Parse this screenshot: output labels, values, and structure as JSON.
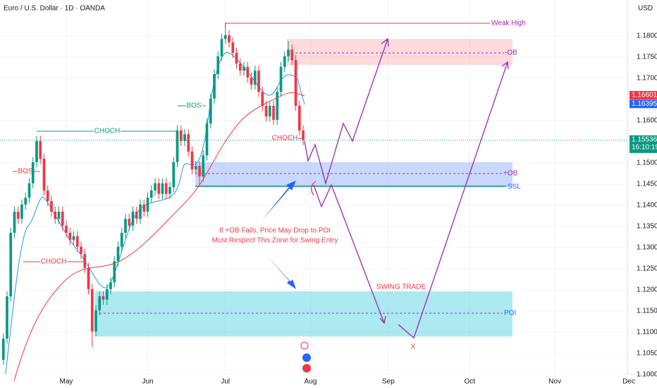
{
  "chart_data": {
    "type": "candlestick",
    "title": "Euro / U.S. Dollar · 1D · OANDA",
    "currency": "USD",
    "x": [
      -17,
      -16,
      -15,
      -14,
      -13,
      -12,
      -11,
      -10,
      -9,
      -8,
      -7,
      -6,
      -5,
      -4,
      -3,
      -2,
      -1,
      0,
      1,
      2,
      3,
      4,
      5,
      6,
      7,
      8,
      9,
      10,
      11,
      12,
      13,
      14,
      15,
      16,
      17,
      18,
      19,
      20,
      21,
      22,
      23,
      24,
      25,
      26,
      27,
      28,
      29,
      30,
      31,
      32,
      33,
      34,
      35,
      36,
      37,
      38,
      39,
      40,
      41,
      42,
      43,
      44,
      45,
      46,
      47,
      48,
      49,
      50,
      51,
      52,
      53,
      54,
      55,
      56,
      57,
      58,
      59,
      60,
      61,
      62,
      63,
      64
    ],
    "open": [
      1.1035,
      1.1085,
      1.1185,
      1.1335,
      1.1385,
      1.1368,
      1.1402,
      1.1418,
      1.1452,
      1.1502,
      1.1552,
      1.151,
      1.1435,
      1.141,
      1.1385,
      1.1368,
      1.1385,
      1.1352,
      1.1335,
      1.1318,
      1.1327,
      1.1302,
      1.1285,
      1.1252,
      1.1202,
      1.1102,
      1.1152,
      1.1185,
      1.1177,
      1.1202,
      1.1218,
      1.1268,
      1.1302,
      1.1335,
      1.1368,
      1.1352,
      1.1385,
      1.1368,
      1.1402,
      1.1385,
      1.1418,
      1.1435,
      1.1452,
      1.1427,
      1.1452,
      1.1427,
      1.1443,
      1.1502,
      1.1577,
      1.1552,
      1.1568,
      1.1527,
      1.1485,
      1.1493,
      1.1468,
      1.1518,
      1.1593,
      1.1652,
      1.171,
      1.1752,
      1.1793,
      1.1802,
      1.1785,
      1.176,
      1.1735,
      1.1718,
      1.1727,
      1.1702,
      1.1685,
      1.1718,
      1.1668,
      1.1635,
      1.161,
      1.1635,
      1.1602,
      1.1668,
      1.1727,
      1.1752,
      1.1768,
      1.1743,
      1.1635,
      1.1577
    ],
    "high": [
      1.1097,
      1.1197,
      1.1347,
      1.1397,
      1.1397,
      1.1414,
      1.143,
      1.1464,
      1.1514,
      1.1564,
      1.1564,
      1.1522,
      1.1447,
      1.1422,
      1.1397,
      1.1397,
      1.1397,
      1.1364,
      1.1347,
      1.1339,
      1.1339,
      1.1314,
      1.1297,
      1.1264,
      1.1214,
      1.1164,
      1.1197,
      1.1197,
      1.1214,
      1.123,
      1.128,
      1.1314,
      1.1347,
      1.138,
      1.138,
      1.1397,
      1.1397,
      1.1414,
      1.1414,
      1.143,
      1.1447,
      1.1464,
      1.1464,
      1.1464,
      1.1464,
      1.1455,
      1.1514,
      1.1589,
      1.1589,
      1.158,
      1.158,
      1.1539,
      1.1505,
      1.1505,
      1.153,
      1.1605,
      1.1664,
      1.1722,
      1.1764,
      1.1805,
      1.1832,
      1.1814,
      1.1797,
      1.1772,
      1.1747,
      1.1739,
      1.1739,
      1.1714,
      1.173,
      1.173,
      1.168,
      1.1647,
      1.1647,
      1.1647,
      1.168,
      1.1739,
      1.1764,
      1.1788,
      1.178,
      1.1755,
      1.1647,
      1.1589
    ],
    "low": [
      1.1023,
      1.1073,
      1.1173,
      1.1323,
      1.1356,
      1.1356,
      1.139,
      1.1406,
      1.144,
      1.149,
      1.1498,
      1.1423,
      1.1398,
      1.1373,
      1.1356,
      1.1356,
      1.134,
      1.1323,
      1.1306,
      1.1306,
      1.129,
      1.1273,
      1.124,
      1.119,
      1.1065,
      1.109,
      1.114,
      1.1165,
      1.1165,
      1.119,
      1.1206,
      1.1256,
      1.129,
      1.1323,
      1.134,
      1.134,
      1.1356,
      1.1356,
      1.1373,
      1.1373,
      1.1406,
      1.1423,
      1.1415,
      1.1415,
      1.1415,
      1.1415,
      1.1431,
      1.149,
      1.154,
      1.154,
      1.1515,
      1.1473,
      1.1473,
      1.1448,
      1.1456,
      1.1506,
      1.1581,
      1.164,
      1.1698,
      1.174,
      1.1781,
      1.1773,
      1.1748,
      1.1723,
      1.1706,
      1.1706,
      1.169,
      1.1673,
      1.1673,
      1.1656,
      1.1623,
      1.1598,
      1.1598,
      1.159,
      1.159,
      1.1656,
      1.1715,
      1.174,
      1.1731,
      1.1623,
      1.1565,
      1.1542
    ],
    "close": [
      1.1085,
      1.1185,
      1.1335,
      1.1385,
      1.1368,
      1.1402,
      1.1418,
      1.1452,
      1.1502,
      1.1552,
      1.151,
      1.1435,
      1.141,
      1.1385,
      1.1368,
      1.1385,
      1.1352,
      1.1335,
      1.1318,
      1.1327,
      1.1302,
      1.1285,
      1.1252,
      1.1202,
      1.1102,
      1.1152,
      1.1185,
      1.1177,
      1.1202,
      1.1218,
      1.1268,
      1.1302,
      1.1335,
      1.1368,
      1.1352,
      1.1385,
      1.1368,
      1.1402,
      1.1385,
      1.1418,
      1.1435,
      1.1452,
      1.1427,
      1.1452,
      1.1427,
      1.1443,
      1.1502,
      1.1577,
      1.1552,
      1.1568,
      1.1527,
      1.1485,
      1.1493,
      1.1468,
      1.1518,
      1.1593,
      1.1652,
      1.171,
      1.1752,
      1.1793,
      1.1802,
      1.1785,
      1.176,
      1.1735,
      1.1718,
      1.1727,
      1.1702,
      1.1685,
      1.1718,
      1.1668,
      1.1635,
      1.161,
      1.1635,
      1.1602,
      1.1668,
      1.1727,
      1.1752,
      1.1768,
      1.1743,
      1.1635,
      1.1577,
      1.1554
    ],
    "up_color": "#089981",
    "down_color": "#f23645",
    "xlim": [
      -17.9,
      151.6
    ],
    "xticks": [
      {
        "value": 0,
        "label": "May"
      },
      {
        "value": 22,
        "label": "Jun"
      },
      {
        "value": 43,
        "label": "Jul"
      },
      {
        "value": 66,
        "label": "Aug"
      },
      {
        "value": 87,
        "label": "Sep"
      },
      {
        "value": 109,
        "label": "Oct"
      },
      {
        "value": 132,
        "label": "Nov"
      },
      {
        "value": 152,
        "label": "Dec"
      }
    ],
    "ylim": [
      1.1,
      1.1885
    ],
    "yticks": [
      {
        "value": 1.1,
        "label": "1.10000"
      },
      {
        "value": 1.105,
        "label": "1.10500"
      },
      {
        "value": 1.11,
        "label": "1.11000"
      },
      {
        "value": 1.115,
        "label": "1.11500"
      },
      {
        "value": 1.12,
        "label": "1.12000"
      },
      {
        "value": 1.125,
        "label": "1.12500"
      },
      {
        "value": 1.13,
        "label": "1.13000"
      },
      {
        "value": 1.135,
        "label": "1.13500"
      },
      {
        "value": 1.14,
        "label": "1.14000"
      },
      {
        "value": 1.145,
        "label": "1.14500"
      },
      {
        "value": 1.15,
        "label": "1.15000"
      },
      {
        "value": 1.16,
        "label": "1.16000"
      },
      {
        "value": 1.17,
        "label": "1.17000"
      },
      {
        "value": 1.175,
        "label": "1.17500"
      },
      {
        "value": 1.18,
        "label": "1.18000"
      }
    ],
    "price_labels": [
      {
        "value": 1.16601,
        "color": "#f23645"
      },
      {
        "value": 1.16395,
        "color": "#2962ff"
      }
    ],
    "last_price": 1.15536,
    "last_price_color": "#089981",
    "countdown": "16:10:19",
    "annotations": {
      "weak_high": "Weak High",
      "minus_ob": "-OB",
      "plus_ob": "+OB",
      "ssl": "SSL",
      "poi": "POI",
      "bos_1": "BOS",
      "bos_2": "BOS",
      "choch_1": "CHOCH",
      "choch_2": "CHOCH",
      "choch_3": "CHOCH",
      "swing_trade": "SWING TRADE",
      "x_mark": "X",
      "note_line_1": "If +OB Fails, Price May Drop to POI",
      "note_line_2": "Must Respect This Zone for Swing Entry"
    }
  }
}
